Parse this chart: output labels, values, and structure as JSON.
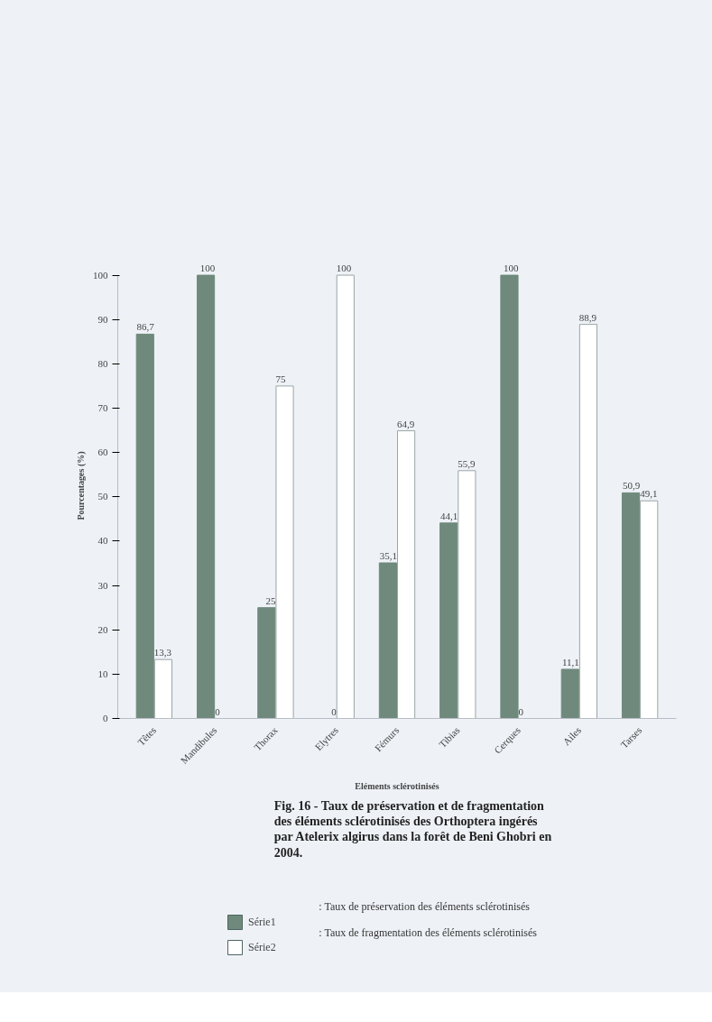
{
  "chart_data": {
    "type": "bar",
    "title": "Fig. 16 - Taux de préservation et de fragmentation des éléments sclérotinisés des Orthoptera ingérés par Atelerix algirus dans la forêt de Beni Ghobri en 2004.",
    "xlabel": "Eléments sclérotinisés",
    "ylabel": "Pourcentages (%)",
    "categories": [
      "Têtes",
      "Mandibules",
      "Thorax",
      "Elytres",
      "Fémurs",
      "Tibias",
      "Cerques",
      "Ailes",
      "Tarses"
    ],
    "series": [
      {
        "name": "Série1",
        "color": "#6f8a7c",
        "values": [
          86.7,
          100,
          25,
          0,
          35.1,
          44.1,
          100,
          11.1,
          50.9
        ],
        "value_labels": [
          "86,7",
          "100",
          "25",
          "0",
          "35,1",
          "44,1",
          "100",
          "11,1",
          "50,9"
        ]
      },
      {
        "name": "Série2",
        "color": "#ffffff",
        "values": [
          13.3,
          0,
          75,
          100,
          64.9,
          55.9,
          0,
          88.9,
          49.1
        ],
        "value_labels": [
          "13,3",
          "0",
          "75",
          "100",
          "64,9",
          "55,9",
          "0",
          "88,9",
          "49,1"
        ]
      }
    ],
    "ylim": [
      0,
      100
    ],
    "yticks": [
      0,
      10,
      20,
      30,
      40,
      50,
      60,
      70,
      80,
      90,
      100
    ],
    "grid": false,
    "legend": "bottom",
    "annotations": [
      ": Taux de préservation des éléments sclérotinisés",
      ": Taux de fragmentation des éléments sclérotinisés"
    ]
  }
}
